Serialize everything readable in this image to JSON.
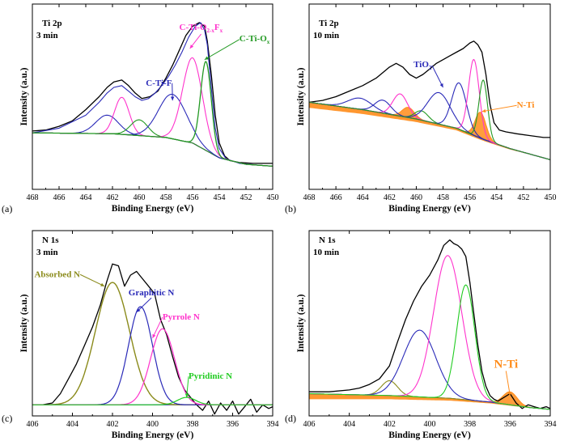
{
  "chart_data": [
    {
      "tag": "(a)",
      "type": "line",
      "annotation": [
        "Ti 2p",
        "3 min"
      ],
      "xlabel": "Binding Energy (eV)",
      "ylabel": "Intensity (a.u.)",
      "xlim": [
        468,
        450
      ],
      "xticks": [
        468,
        466,
        464,
        462,
        460,
        458,
        456,
        454,
        452,
        450
      ],
      "ylim": [
        0,
        1
      ],
      "peak_labels": [
        {
          "text": "C-Ti-O",
          "sub": "2-x",
          "text2": "F",
          "sub2": "x",
          "x": 457.0,
          "y": 0.86,
          "color": "#ff33cc",
          "arrow_to": [
            456.2,
            0.76
          ]
        },
        {
          "text": "C-Ti-O",
          "sub": "x",
          "x": 452.5,
          "y": 0.8,
          "color": "#229922",
          "arrow_to": [
            455.1,
            0.7
          ]
        },
        {
          "text": "C-Ti-F",
          "sub": "",
          "x": 459.5,
          "y": 0.56,
          "color": "#2a2ab8",
          "arrow_to": [
            457.5,
            0.48
          ]
        }
      ],
      "baseline": {
        "x": [
          468,
          462,
          458,
          456,
          454,
          452,
          450
        ],
        "y": [
          0.305,
          0.3,
          0.28,
          0.25,
          0.17,
          0.135,
          0.125
        ]
      },
      "series": [
        {
          "name": "",
          "color": "#000000",
          "width": 1.3,
          "x": [
            468,
            467,
            466,
            465,
            464,
            463,
            462.4,
            461.9,
            461.3,
            460.8,
            460.3,
            459.8,
            459.2,
            458.6,
            458,
            457.5,
            457,
            456.5,
            456,
            455.5,
            455.1,
            454.9,
            454.6,
            454.3,
            454,
            453.6,
            453.2,
            452.5,
            451.5,
            450.5,
            450
          ],
          "y": [
            0.315,
            0.32,
            0.34,
            0.37,
            0.43,
            0.5,
            0.55,
            0.58,
            0.59,
            0.56,
            0.52,
            0.49,
            0.5,
            0.53,
            0.6,
            0.67,
            0.75,
            0.83,
            0.88,
            0.9,
            0.88,
            0.8,
            0.62,
            0.4,
            0.25,
            0.18,
            0.155,
            0.145,
            0.14,
            0.14,
            0.14
          ]
        },
        {
          "name": "",
          "color": "#2a2ab8",
          "width": 1.1,
          "type": "envelope",
          "x": [
            468,
            466,
            464,
            463,
            462.4,
            461.9,
            461.3,
            460.8,
            460.3,
            459.8,
            459.3,
            458.8,
            458.3,
            457.8,
            457.3,
            456.8,
            456.3,
            455.8,
            455.4,
            455.1,
            454.9,
            454.6,
            454.3,
            454,
            453.5,
            452.5,
            451,
            450
          ],
          "y": [
            0.305,
            0.33,
            0.4,
            0.47,
            0.52,
            0.55,
            0.56,
            0.53,
            0.5,
            0.48,
            0.49,
            0.52,
            0.56,
            0.61,
            0.67,
            0.74,
            0.82,
            0.88,
            0.9,
            0.86,
            0.78,
            0.55,
            0.33,
            0.22,
            0.165,
            0.14,
            0.13,
            0.125
          ]
        },
        {
          "name": "",
          "color": "#2a2ab8",
          "width": 1.1,
          "type": "peak",
          "center": 462.4,
          "height": 0.1,
          "sigma": 0.85
        },
        {
          "name": "",
          "color": "#ff33cc",
          "width": 1.1,
          "type": "peak",
          "center": 461.3,
          "height": 0.2,
          "sigma": 0.55
        },
        {
          "name": "",
          "color": "#229922",
          "width": 1.1,
          "type": "peak",
          "center": 460.0,
          "height": 0.085,
          "sigma": 0.65
        },
        {
          "name": "",
          "color": "#2a2ab8",
          "width": 1.1,
          "type": "peak",
          "center": 457.5,
          "height": 0.24,
          "sigma": 1.05
        },
        {
          "name": "",
          "color": "#ff33cc",
          "width": 1.1,
          "type": "peak",
          "center": 456.0,
          "height": 0.46,
          "sigma": 0.75
        },
        {
          "name": "",
          "color": "#229922",
          "width": 1.3,
          "type": "peak",
          "center": 455.0,
          "height": 0.48,
          "sigma": 0.4
        }
      ]
    },
    {
      "tag": "(b)",
      "type": "line",
      "annotation": [
        "Ti 2p",
        "10 min"
      ],
      "xlabel": "Binding Energy (eV)",
      "ylabel": "Intensity (a.u.)",
      "xlim": [
        468,
        450
      ],
      "xticks": [
        468,
        466,
        464,
        462,
        460,
        458,
        456,
        454,
        452,
        450
      ],
      "ylim": [
        0,
        1
      ],
      "peak_labels": [
        {
          "text": "TiO",
          "sub": "2",
          "x": 460.2,
          "y": 0.66,
          "color": "#2a2ab8",
          "arrow_to": [
            458.0,
            0.55
          ]
        },
        {
          "text": "N-Ti",
          "sub": "",
          "x": 452.5,
          "y": 0.44,
          "color": "#ff8c1a",
          "arrow_to": [
            455.1,
            0.42
          ]
        }
      ],
      "baseline": {
        "x": [
          468,
          464,
          460,
          457,
          455,
          453,
          450
        ],
        "y": [
          0.47,
          0.43,
          0.38,
          0.33,
          0.27,
          0.22,
          0.16
        ]
      },
      "series": [
        {
          "name": "",
          "color": "#000000",
          "width": 1.3,
          "x": [
            468,
            467,
            466,
            465,
            464,
            463,
            462.5,
            462,
            461.5,
            461,
            460.5,
            460,
            459.5,
            459,
            458.5,
            458,
            457.5,
            457,
            456.5,
            456,
            455.7,
            455.4,
            455.1,
            454.8,
            454.5,
            454.2,
            453.8,
            453.3,
            452.5,
            451.5,
            450.5,
            450
          ],
          "y": [
            0.47,
            0.48,
            0.5,
            0.53,
            0.56,
            0.6,
            0.63,
            0.66,
            0.68,
            0.66,
            0.62,
            0.6,
            0.62,
            0.65,
            0.68,
            0.7,
            0.72,
            0.74,
            0.76,
            0.79,
            0.8,
            0.78,
            0.74,
            0.62,
            0.46,
            0.36,
            0.32,
            0.31,
            0.3,
            0.29,
            0.28,
            0.28
          ]
        },
        {
          "name": "",
          "color": "#2a2ab8",
          "width": 1.1,
          "type": "peak",
          "center": 464.2,
          "height": 0.06,
          "sigma": 0.9
        },
        {
          "name": "",
          "color": "#2a2ab8",
          "width": 1.1,
          "type": "peak",
          "center": 462.5,
          "height": 0.07,
          "sigma": 0.6
        },
        {
          "name": "",
          "color": "#ff33cc",
          "width": 1.1,
          "type": "peak",
          "center": 461.2,
          "height": 0.12,
          "sigma": 0.55
        },
        {
          "name": "",
          "color": "#229922",
          "width": 1.1,
          "type": "peak",
          "center": 459.6,
          "height": 0.05,
          "sigma": 0.5
        },
        {
          "name": "",
          "color": "#2a2ab8",
          "width": 1.1,
          "type": "peak",
          "center": 458.3,
          "height": 0.17,
          "sigma": 0.85
        },
        {
          "name": "",
          "color": "#2a2ab8",
          "width": 1.1,
          "type": "peak",
          "center": 456.8,
          "height": 0.25,
          "sigma": 0.55
        },
        {
          "name": "",
          "color": "#ff33cc",
          "width": 1.1,
          "type": "peak",
          "center": 455.7,
          "height": 0.41,
          "sigma": 0.4
        },
        {
          "name": "",
          "color": "#229922",
          "width": 1.1,
          "type": "peak",
          "center": 455.0,
          "height": 0.32,
          "sigma": 0.32
        }
      ],
      "fills": [
        {
          "color": "#ff8c1a",
          "center": 460.6,
          "height": 0.055,
          "sigma": 0.45
        },
        {
          "color": "#ff8c1a",
          "center": 455.2,
          "height": 0.14,
          "sigma": 0.4
        }
      ]
    },
    {
      "tag": "(c)",
      "type": "line",
      "annotation": [
        "N 1s",
        "3 min"
      ],
      "xlabel": "Binding Energy (eV)",
      "ylabel": "Intensity (a.u.)",
      "xlim": [
        406,
        394
      ],
      "xticks": [
        406,
        404,
        402,
        400,
        398,
        396,
        394
      ],
      "ylim": [
        0,
        1
      ],
      "peak_labels": [
        {
          "text": "Absorbed N",
          "sub": "",
          "x": 405.9,
          "y": 0.75,
          "color": "#8a8a1a",
          "arrow_to": [
            402.4,
            0.7
          ]
        },
        {
          "text": "Graphitic N",
          "sub": "",
          "x": 401.2,
          "y": 0.65,
          "color": "#2a2ab8",
          "arrow_to": [
            400.8,
            0.56
          ]
        },
        {
          "text": "Pyrrole N",
          "sub": "",
          "x": 399.5,
          "y": 0.52,
          "color": "#ff33cc",
          "arrow_to": [
            400.0,
            0.42
          ]
        },
        {
          "text": "Pyridinic N",
          "sub": "",
          "x": 398.2,
          "y": 0.2,
          "color": "#22cc22",
          "arrow_to": [
            398.3,
            0.1
          ]
        }
      ],
      "baseline": {
        "x": [
          406,
          394
        ],
        "y": [
          0.06,
          0.06
        ]
      },
      "series": [
        {
          "name": "",
          "color": "#000000",
          "width": 1.3,
          "x": [
            406,
            405.5,
            405,
            404.6,
            404.2,
            403.8,
            403.4,
            403,
            402.6,
            402.3,
            402,
            401.7,
            401.4,
            401.1,
            400.8,
            400.5,
            400.2,
            399.9,
            399.6,
            399.3,
            399,
            398.7,
            398.4,
            398.1,
            397.8,
            397.5,
            397.2,
            396.9,
            396.6,
            396.3,
            396,
            395.7,
            395.4,
            395.1,
            394.8,
            394.5,
            394.2,
            394
          ],
          "y": [
            0.06,
            0.06,
            0.07,
            0.12,
            0.2,
            0.28,
            0.38,
            0.48,
            0.6,
            0.72,
            0.82,
            0.81,
            0.7,
            0.76,
            0.78,
            0.74,
            0.7,
            0.66,
            0.52,
            0.44,
            0.32,
            0.21,
            0.14,
            0.1,
            0.06,
            0.03,
            0.08,
            0.01,
            0.07,
            0.03,
            0.08,
            0.01,
            0.05,
            0.09,
            0.02,
            0.06,
            0.04,
            0.05
          ]
        },
        {
          "name": "",
          "color": "#8a8a1a",
          "width": 1.4,
          "type": "peak",
          "center": 402.0,
          "height": 0.66,
          "sigma": 0.85
        },
        {
          "name": "",
          "color": "#2a2ab8",
          "width": 1.2,
          "type": "peak",
          "center": 400.6,
          "height": 0.53,
          "sigma": 0.6
        },
        {
          "name": "",
          "color": "#ff33cc",
          "width": 1.2,
          "type": "peak",
          "center": 399.5,
          "height": 0.41,
          "sigma": 0.6
        },
        {
          "name": "",
          "color": "#22cc22",
          "width": 1.2,
          "type": "peak",
          "center": 398.3,
          "height": 0.04,
          "sigma": 0.45
        }
      ]
    },
    {
      "tag": "(d)",
      "type": "line",
      "annotation": [
        "N 1s",
        "10 min"
      ],
      "xlabel": "Binding Energy (eV)",
      "ylabel": "Intensity (a.u.)",
      "xlim": [
        406,
        394
      ],
      "xticks": [
        406,
        404,
        402,
        400,
        398,
        396,
        394
      ],
      "ylim": [
        0,
        1
      ],
      "peak_labels": [
        {
          "text": "N-Ti",
          "sub": "",
          "x": 396.8,
          "y": 0.26,
          "color": "#ff8c1a",
          "arrow_to": [
            396.0,
            0.11
          ],
          "big": true
        }
      ],
      "baseline": {
        "x": [
          406,
          402,
          399,
          397,
          395,
          394
        ],
        "y": [
          0.12,
          0.11,
          0.095,
          0.075,
          0.045,
          0.035
        ]
      },
      "series": [
        {
          "name": "",
          "color": "#000000",
          "width": 1.3,
          "x": [
            406,
            405,
            404,
            403.5,
            403,
            402.5,
            402,
            401.6,
            401.2,
            400.8,
            400.4,
            400,
            399.6,
            399.3,
            399,
            398.8,
            398.6,
            398.4,
            398.2,
            398,
            397.8,
            397.6,
            397.4,
            397.2,
            397,
            396.8,
            396.6,
            396.3,
            396,
            395.7,
            395.4,
            395.1,
            394.8,
            394.5,
            394.2,
            394
          ],
          "y": [
            0.13,
            0.13,
            0.14,
            0.15,
            0.17,
            0.2,
            0.27,
            0.4,
            0.52,
            0.62,
            0.7,
            0.76,
            0.84,
            0.92,
            0.95,
            0.93,
            0.92,
            0.9,
            0.86,
            0.72,
            0.55,
            0.38,
            0.24,
            0.16,
            0.11,
            0.09,
            0.08,
            0.1,
            0.12,
            0.07,
            0.04,
            0.06,
            0.05,
            0.04,
            0.05,
            0.04
          ]
        },
        {
          "name": "",
          "color": "#8a8a1a",
          "width": 1.1,
          "type": "peak",
          "center": 402.0,
          "height": 0.08,
          "sigma": 0.4
        },
        {
          "name": "",
          "color": "#2a2ab8",
          "width": 1.1,
          "type": "peak",
          "center": 400.5,
          "height": 0.36,
          "sigma": 0.8
        },
        {
          "name": "",
          "color": "#ff33cc",
          "width": 1.1,
          "type": "peak",
          "center": 399.1,
          "height": 0.77,
          "sigma": 0.7
        },
        {
          "name": "",
          "color": "#22cc22",
          "width": 1.1,
          "type": "peak",
          "center": 398.2,
          "height": 0.62,
          "sigma": 0.45
        }
      ],
      "fills": [
        {
          "color": "#ff8c1a",
          "center": 396.0,
          "height": 0.07,
          "sigma": 0.35
        }
      ]
    }
  ]
}
